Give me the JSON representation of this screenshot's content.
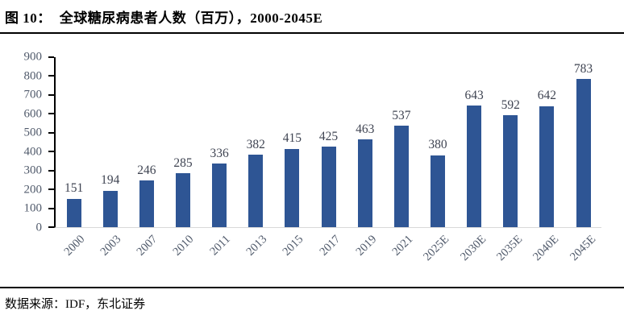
{
  "header": {
    "figure_label": "图  10：",
    "title": "全球糖尿病患者人数（百万），2000-2045E"
  },
  "footer": {
    "source": "数据来源：IDF，东北证券"
  },
  "colors": {
    "bar": "#2e5594",
    "axis_line": "#000000",
    "baseline": "#d9d9d9",
    "axis_text": "#505a6b",
    "data_label": "#3f4452"
  },
  "chart_data": {
    "type": "bar",
    "title": "全球糖尿病患者人数（百万），2000-2045E",
    "categories": [
      "2000",
      "2003",
      "2007",
      "2010",
      "2011",
      "2013",
      "2015",
      "2017",
      "2019",
      "2021",
      "2025E",
      "2030E",
      "2035E",
      "2040E",
      "2045E"
    ],
    "values": [
      151,
      194,
      246,
      285,
      336,
      382,
      415,
      425,
      463,
      537,
      380,
      643,
      592,
      642,
      783
    ],
    "xlabel": "",
    "ylabel": "",
    "ylim": [
      0,
      900
    ],
    "ytick_step": 100,
    "grid": false,
    "legend": false,
    "data_labels": true,
    "x_tick_rotation": -45,
    "source": "数据来源：IDF，东北证券"
  }
}
